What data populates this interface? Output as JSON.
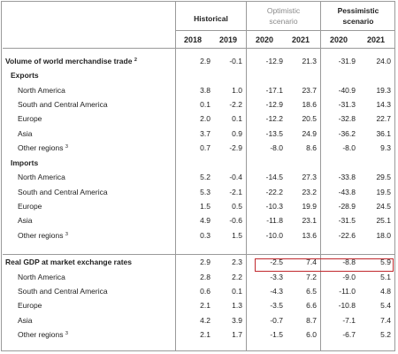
{
  "headers": {
    "historical": "Historical",
    "optimistic_line1": "Optimistic",
    "optimistic_line2": "scenario",
    "pessimistic_line1": "Pessimistic",
    "pessimistic_line2": "scenario"
  },
  "years": [
    "2018",
    "2019",
    "2020",
    "2021",
    "2020",
    "2021"
  ],
  "rows": [
    {
      "type": "main",
      "label": "Volume of world merchandise trade",
      "sup": "2",
      "values": [
        "2.9",
        "-0.1",
        "-12.9",
        "21.3",
        "-31.9",
        "24.0"
      ]
    },
    {
      "type": "sub",
      "label": "Exports",
      "sup": "",
      "values": []
    },
    {
      "type": "item",
      "label": "North America",
      "sup": "",
      "values": [
        "3.8",
        "1.0",
        "-17.1",
        "23.7",
        "-40.9",
        "19.3"
      ]
    },
    {
      "type": "item",
      "label": "South and Central America",
      "sup": "",
      "values": [
        "0.1",
        "-2.2",
        "-12.9",
        "18.6",
        "-31.3",
        "14.3"
      ]
    },
    {
      "type": "item",
      "label": "Europe",
      "sup": "",
      "values": [
        "2.0",
        "0.1",
        "-12.2",
        "20.5",
        "-32.8",
        "22.7"
      ]
    },
    {
      "type": "item",
      "label": "Asia",
      "sup": "",
      "values": [
        "3.7",
        "0.9",
        "-13.5",
        "24.9",
        "-36.2",
        "36.1"
      ]
    },
    {
      "type": "item",
      "label": "Other regions",
      "sup": "3",
      "values": [
        "0.7",
        "-2.9",
        "-8.0",
        "8.6",
        "-8.0",
        "9.3"
      ]
    },
    {
      "type": "sub",
      "label": "Imports",
      "sup": "",
      "values": []
    },
    {
      "type": "item",
      "label": "North America",
      "sup": "",
      "values": [
        "5.2",
        "-0.4",
        "-14.5",
        "27.3",
        "-33.8",
        "29.5"
      ]
    },
    {
      "type": "item",
      "label": "South and Central America",
      "sup": "",
      "values": [
        "5.3",
        "-2.1",
        "-22.2",
        "23.2",
        "-43.8",
        "19.5"
      ]
    },
    {
      "type": "item",
      "label": "Europe",
      "sup": "",
      "values": [
        "1.5",
        "0.5",
        "-10.3",
        "19.9",
        "-28.9",
        "24.5"
      ]
    },
    {
      "type": "item",
      "label": "Asia",
      "sup": "",
      "values": [
        "4.9",
        "-0.6",
        "-11.8",
        "23.1",
        "-31.5",
        "25.1"
      ]
    },
    {
      "type": "item",
      "label": "Other regions",
      "sup": "3",
      "values": [
        "0.3",
        "1.5",
        "-10.0",
        "13.6",
        "-22.6",
        "18.0"
      ]
    },
    {
      "type": "main",
      "label": "Real GDP at market exchange rates",
      "sup": "",
      "values": [
        "2.9",
        "2.3",
        "-2.5",
        "7.4",
        "-8.8",
        "5.9"
      ]
    },
    {
      "type": "item",
      "label": "North America",
      "sup": "",
      "values": [
        "2.8",
        "2.2",
        "-3.3",
        "7.2",
        "-9.0",
        "5.1"
      ]
    },
    {
      "type": "item",
      "label": "South and Central America",
      "sup": "",
      "values": [
        "0.6",
        "0.1",
        "-4.3",
        "6.5",
        "-11.0",
        "4.8"
      ]
    },
    {
      "type": "item",
      "label": "Europe",
      "sup": "",
      "values": [
        "2.1",
        "1.3",
        "-3.5",
        "6.6",
        "-10.8",
        "5.4"
      ]
    },
    {
      "type": "item",
      "label": "Asia",
      "sup": "",
      "values": [
        "4.2",
        "3.9",
        "-0.7",
        "8.7",
        "-7.1",
        "7.4"
      ]
    },
    {
      "type": "item",
      "label": "Other regions",
      "sup": "3",
      "values": [
        "2.1",
        "1.7",
        "-1.5",
        "6.0",
        "-6.7",
        "5.2"
      ]
    }
  ],
  "highlight_color": "#c0282d"
}
